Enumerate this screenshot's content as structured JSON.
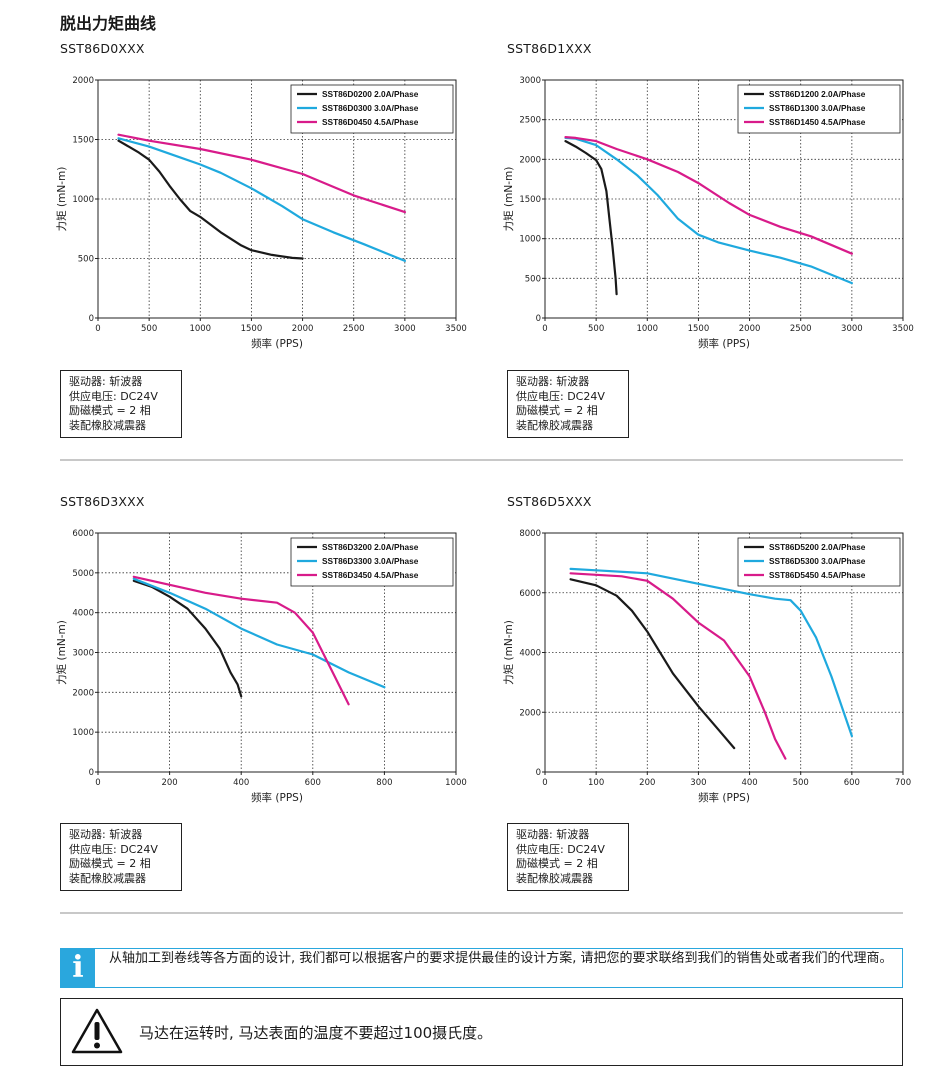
{
  "page_title": "脱出力矩曲线",
  "panels": [
    {
      "title": "SST86D0XXX",
      "conditions": [
        "驱动器: 斩波器",
        "供应电压: DC24V",
        "励磁模式 = 2 相",
        "装配橡胶减震器"
      ]
    },
    {
      "title": "SST86D1XXX",
      "conditions": [
        "驱动器: 斩波器",
        "供应电压: DC24V",
        "励磁模式 = 2 相",
        "装配橡胶减震器"
      ]
    },
    {
      "title": "SST86D3XXX",
      "conditions": [
        "驱动器: 斩波器",
        "供应电压: DC24V",
        "励磁模式 = 2 相",
        "装配橡胶减震器"
      ]
    },
    {
      "title": "SST86D5XXX",
      "conditions": [
        "驱动器: 斩波器",
        "供应电压: DC24V",
        "励磁模式 = 2 相",
        "装配橡胶减震器"
      ]
    }
  ],
  "chart_data": [
    {
      "type": "line",
      "xlabel": "频率 (PPS)",
      "ylabel": "力矩 (mN-m)",
      "xlim": [
        0,
        3500
      ],
      "ylim": [
        0,
        2000
      ],
      "xticks": [
        0,
        500,
        1000,
        1500,
        2000,
        2500,
        3000,
        3500
      ],
      "yticks": [
        0,
        500,
        1000,
        1500,
        2000
      ],
      "grid": true,
      "legend": "top-right",
      "series": [
        {
          "name": "SST86D0200  2.0A/Phase",
          "color": "#1a1a1a",
          "x": [
            200,
            300,
            400,
            500,
            600,
            700,
            800,
            900,
            1000,
            1200,
            1400,
            1500,
            1700,
            1900,
            2000
          ],
          "y": [
            1490,
            1440,
            1390,
            1330,
            1230,
            1110,
            1000,
            900,
            850,
            720,
            610,
            570,
            530,
            505,
            500
          ]
        },
        {
          "name": "SST86D0300  3.0A/Phase",
          "color": "#1fa9de",
          "x": [
            200,
            500,
            800,
            1000,
            1200,
            1500,
            1800,
            2000,
            2300,
            2600,
            3000
          ],
          "y": [
            1510,
            1440,
            1350,
            1290,
            1220,
            1090,
            940,
            830,
            720,
            620,
            480
          ]
        },
        {
          "name": "SST86D0450  4.5A/Phase",
          "color": "#d81b8a",
          "x": [
            200,
            500,
            1000,
            1500,
            2000,
            2500,
            3000
          ],
          "y": [
            1540,
            1490,
            1420,
            1330,
            1210,
            1030,
            890
          ]
        }
      ]
    },
    {
      "type": "line",
      "xlabel": "频率 (PPS)",
      "ylabel": "力矩 (mN-m)",
      "xlim": [
        0,
        3500
      ],
      "ylim": [
        0,
        3000
      ],
      "xticks": [
        0,
        500,
        1000,
        1500,
        2000,
        2500,
        3000,
        3500
      ],
      "yticks": [
        0,
        500,
        1000,
        1500,
        2000,
        2500,
        3000
      ],
      "grid": true,
      "legend": "top-right",
      "series": [
        {
          "name": "SST86D1200  2.0A/Phase",
          "color": "#1a1a1a",
          "x": [
            200,
            300,
            400,
            500,
            550,
            600,
            630,
            660,
            690,
            700
          ],
          "y": [
            2230,
            2160,
            2080,
            1990,
            1880,
            1600,
            1250,
            900,
            500,
            300
          ]
        },
        {
          "name": "SST86D1300  3.0A/Phase",
          "color": "#1fa9de",
          "x": [
            200,
            300,
            500,
            700,
            900,
            1100,
            1300,
            1500,
            1700,
            2000,
            2300,
            2600,
            3000
          ],
          "y": [
            2270,
            2260,
            2180,
            2000,
            1800,
            1550,
            1250,
            1050,
            950,
            850,
            760,
            650,
            440
          ]
        },
        {
          "name": "SST86D1450  4.5A/Phase",
          "color": "#d81b8a",
          "x": [
            200,
            300,
            500,
            700,
            1000,
            1300,
            1500,
            1800,
            2000,
            2300,
            2600,
            3000
          ],
          "y": [
            2280,
            2270,
            2230,
            2130,
            2000,
            1840,
            1700,
            1450,
            1300,
            1150,
            1030,
            810
          ]
        }
      ]
    },
    {
      "type": "line",
      "xlabel": "频率 (PPS)",
      "ylabel": "力矩 (mN-m)",
      "xlim": [
        0,
        1000
      ],
      "ylim": [
        0,
        6000
      ],
      "xticks": [
        0,
        200,
        400,
        600,
        800,
        1000
      ],
      "yticks": [
        0,
        1000,
        2000,
        3000,
        4000,
        5000,
        6000
      ],
      "grid": true,
      "legend": "top-right",
      "series": [
        {
          "name": "SST86D3200  2.0A/Phase",
          "color": "#1a1a1a",
          "x": [
            100,
            150,
            200,
            250,
            300,
            340,
            370,
            390,
            400
          ],
          "y": [
            4800,
            4650,
            4400,
            4100,
            3600,
            3100,
            2500,
            2200,
            1900
          ]
        },
        {
          "name": "SST86D3300  3.0A/Phase",
          "color": "#1fa9de",
          "x": [
            100,
            200,
            300,
            400,
            500,
            600,
            700,
            800
          ],
          "y": [
            4850,
            4500,
            4100,
            3600,
            3200,
            2950,
            2500,
            2130
          ]
        },
        {
          "name": "SST86D3450  4.5A/Phase",
          "color": "#d81b8a",
          "x": [
            100,
            200,
            300,
            400,
            500,
            550,
            600,
            650,
            700
          ],
          "y": [
            4900,
            4700,
            4500,
            4350,
            4250,
            4000,
            3500,
            2600,
            1700
          ]
        }
      ]
    },
    {
      "type": "line",
      "xlabel": "频率 (PPS)",
      "ylabel": "力矩 (mN-m)",
      "xlim": [
        0,
        700
      ],
      "ylim": [
        0,
        8000
      ],
      "xticks": [
        0,
        100,
        200,
        300,
        400,
        500,
        600,
        700
      ],
      "yticks": [
        0,
        2000,
        4000,
        6000,
        8000
      ],
      "grid": true,
      "legend": "top-right",
      "series": [
        {
          "name": "SST86D5200  2.0A/Phase",
          "color": "#1a1a1a",
          "x": [
            50,
            100,
            140,
            170,
            200,
            250,
            300,
            340,
            370
          ],
          "y": [
            6450,
            6250,
            5900,
            5400,
            4700,
            3300,
            2200,
            1400,
            800
          ]
        },
        {
          "name": "SST86D5300  3.0A/Phase",
          "color": "#1fa9de",
          "x": [
            50,
            100,
            200,
            300,
            400,
            450,
            480,
            500,
            530,
            560,
            600
          ],
          "y": [
            6800,
            6750,
            6650,
            6300,
            5950,
            5800,
            5750,
            5400,
            4500,
            3200,
            1200
          ]
        },
        {
          "name": "SST86D5450  4.5A/Phase",
          "color": "#d81b8a",
          "x": [
            50,
            100,
            150,
            200,
            250,
            300,
            350,
            400,
            430,
            450,
            470
          ],
          "y": [
            6650,
            6600,
            6550,
            6400,
            5800,
            5000,
            4400,
            3200,
            2000,
            1100,
            450
          ]
        }
      ]
    }
  ],
  "info": {
    "icon": "info-icon",
    "text": "从轴加工到卷线等各方面的设计, 我们都可以根据客户的要求提供最佳的设计方案, 请把您的要求联络到我们的销售处或者我们的代理商。",
    "color": "#2aa7dd"
  },
  "warning": {
    "icon": "warning-triangle-icon",
    "text": "马达在运转时, 马达表面的温度不要超过100摄氏度。"
  }
}
